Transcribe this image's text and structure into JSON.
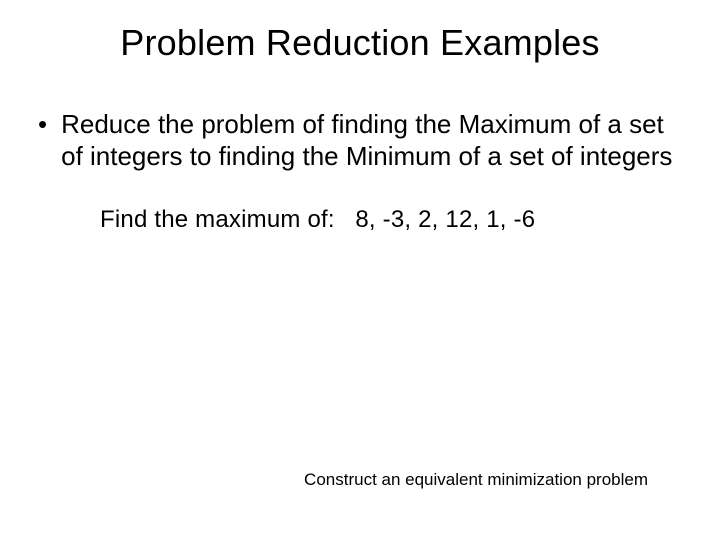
{
  "title": "Problem Reduction Examples",
  "bullet": {
    "text": "Reduce the problem of finding the Maximum of a set of integers to finding the Minimum of a set of integers"
  },
  "example": {
    "label": "Find the maximum of:",
    "values": "8,  -3,  2,  12, 1, -6"
  },
  "footer": "Construct an equivalent minimization problem",
  "colors": {
    "background": "#ffffff",
    "text": "#000000"
  },
  "fonts": {
    "title_size": 36,
    "body_size": 26,
    "example_size": 24,
    "footer_size": 17
  }
}
